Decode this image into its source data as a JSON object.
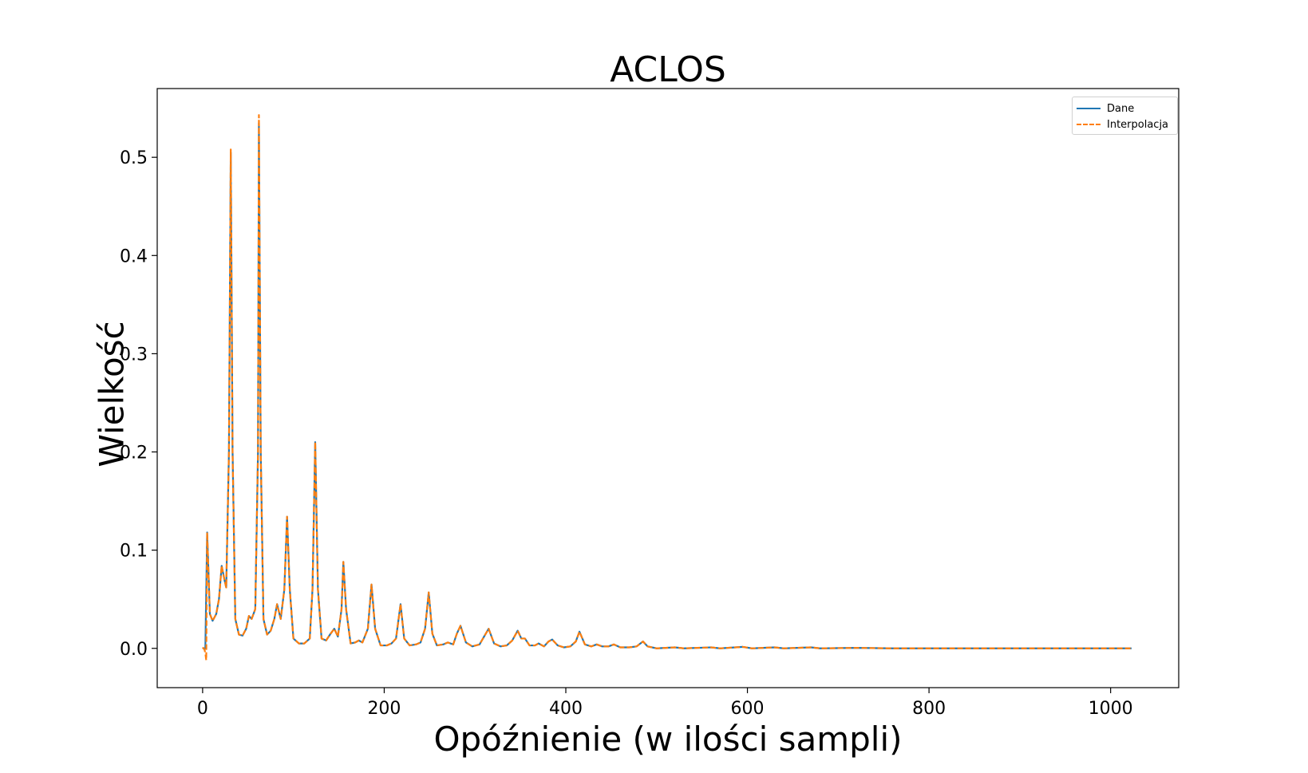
{
  "chart_data": {
    "type": "line",
    "title": "ACLOS",
    "xlabel": "Opóźnienie (w ilości sampli)",
    "ylabel": "Wielkość",
    "xlim": [
      -50,
      1075
    ],
    "ylim": [
      -0.04,
      0.57
    ],
    "xticks": [
      0,
      200,
      400,
      600,
      800,
      1000
    ],
    "yticks": [
      0.0,
      0.1,
      0.2,
      0.3,
      0.4,
      0.5
    ],
    "legend_position": "top-right",
    "grid": false,
    "series": [
      {
        "name": "Dane",
        "color": "#1f77b4",
        "style": "solid",
        "points": [
          [
            0,
            0.0
          ],
          [
            3,
            0.0
          ],
          [
            5,
            0.118
          ],
          [
            8,
            0.035
          ],
          [
            11,
            0.028
          ],
          [
            15,
            0.035
          ],
          [
            18,
            0.05
          ],
          [
            21,
            0.084
          ],
          [
            24,
            0.07
          ],
          [
            26,
            0.062
          ],
          [
            29,
            0.2
          ],
          [
            31,
            0.505
          ],
          [
            33,
            0.2
          ],
          [
            36,
            0.03
          ],
          [
            40,
            0.014
          ],
          [
            44,
            0.013
          ],
          [
            48,
            0.02
          ],
          [
            51,
            0.033
          ],
          [
            54,
            0.03
          ],
          [
            58,
            0.04
          ],
          [
            61,
            0.2
          ],
          [
            62,
            0.535
          ],
          [
            64,
            0.2
          ],
          [
            67,
            0.03
          ],
          [
            71,
            0.014
          ],
          [
            75,
            0.018
          ],
          [
            79,
            0.03
          ],
          [
            82,
            0.045
          ],
          [
            86,
            0.03
          ],
          [
            90,
            0.06
          ],
          [
            93,
            0.134
          ],
          [
            96,
            0.06
          ],
          [
            100,
            0.01
          ],
          [
            106,
            0.005
          ],
          [
            112,
            0.005
          ],
          [
            118,
            0.01
          ],
          [
            121,
            0.06
          ],
          [
            124,
            0.21
          ],
          [
            127,
            0.06
          ],
          [
            131,
            0.01
          ],
          [
            136,
            0.008
          ],
          [
            141,
            0.015
          ],
          [
            145,
            0.02
          ],
          [
            149,
            0.012
          ],
          [
            153,
            0.04
          ],
          [
            155,
            0.088
          ],
          [
            158,
            0.04
          ],
          [
            163,
            0.005
          ],
          [
            168,
            0.006
          ],
          [
            172,
            0.008
          ],
          [
            176,
            0.006
          ],
          [
            182,
            0.02
          ],
          [
            186,
            0.065
          ],
          [
            190,
            0.02
          ],
          [
            196,
            0.003
          ],
          [
            203,
            0.003
          ],
          [
            208,
            0.005
          ],
          [
            213,
            0.01
          ],
          [
            218,
            0.045
          ],
          [
            222,
            0.01
          ],
          [
            228,
            0.003
          ],
          [
            235,
            0.004
          ],
          [
            240,
            0.006
          ],
          [
            245,
            0.02
          ],
          [
            249,
            0.057
          ],
          [
            253,
            0.015
          ],
          [
            258,
            0.003
          ],
          [
            265,
            0.004
          ],
          [
            270,
            0.006
          ],
          [
            276,
            0.004
          ],
          [
            280,
            0.015
          ],
          [
            284,
            0.023
          ],
          [
            290,
            0.006
          ],
          [
            297,
            0.002
          ],
          [
            305,
            0.004
          ],
          [
            310,
            0.012
          ],
          [
            315,
            0.02
          ],
          [
            321,
            0.005
          ],
          [
            328,
            0.002
          ],
          [
            335,
            0.003
          ],
          [
            341,
            0.008
          ],
          [
            347,
            0.018
          ],
          [
            351,
            0.01
          ],
          [
            355,
            0.01
          ],
          [
            360,
            0.003
          ],
          [
            366,
            0.003
          ],
          [
            370,
            0.005
          ],
          [
            376,
            0.002
          ],
          [
            381,
            0.007
          ],
          [
            385,
            0.009
          ],
          [
            391,
            0.003
          ],
          [
            398,
            0.001
          ],
          [
            405,
            0.002
          ],
          [
            411,
            0.007
          ],
          [
            415,
            0.017
          ],
          [
            421,
            0.004
          ],
          [
            428,
            0.002
          ],
          [
            434,
            0.004
          ],
          [
            440,
            0.002
          ],
          [
            447,
            0.002
          ],
          [
            453,
            0.004
          ],
          [
            460,
            0.001
          ],
          [
            470,
            0.001
          ],
          [
            478,
            0.002
          ],
          [
            485,
            0.007
          ],
          [
            490,
            0.002
          ],
          [
            500,
            0.0
          ],
          [
            520,
            0.001
          ],
          [
            530,
            0.0
          ],
          [
            560,
            0.001
          ],
          [
            570,
            0.0
          ],
          [
            595,
            0.0015
          ],
          [
            605,
            0.0
          ],
          [
            630,
            0.001
          ],
          [
            640,
            0.0
          ],
          [
            670,
            0.001
          ],
          [
            680,
            0.0
          ],
          [
            720,
            0.0005
          ],
          [
            760,
            0.0
          ],
          [
            800,
            0.0
          ],
          [
            850,
            0.0
          ],
          [
            900,
            0.0
          ],
          [
            950,
            0.0
          ],
          [
            1000,
            0.0
          ],
          [
            1023,
            0.0
          ]
        ]
      },
      {
        "name": "Interpolacja",
        "color": "#ff7f0e",
        "style": "dashed",
        "points": [
          [
            0,
            0.001
          ],
          [
            2,
            -0.001
          ],
          [
            3,
            -0.005
          ],
          [
            4,
            -0.012
          ],
          [
            5,
            0.118
          ],
          [
            8,
            0.035
          ],
          [
            11,
            0.028
          ],
          [
            15,
            0.035
          ],
          [
            18,
            0.05
          ],
          [
            21,
            0.084
          ],
          [
            24,
            0.07
          ],
          [
            26,
            0.062
          ],
          [
            29,
            0.2
          ],
          [
            31,
            0.508
          ],
          [
            33,
            0.2
          ],
          [
            36,
            0.03
          ],
          [
            40,
            0.014
          ],
          [
            44,
            0.013
          ],
          [
            48,
            0.02
          ],
          [
            51,
            0.033
          ],
          [
            54,
            0.03
          ],
          [
            58,
            0.04
          ],
          [
            61,
            0.2
          ],
          [
            62,
            0.543
          ],
          [
            64,
            0.2
          ],
          [
            67,
            0.03
          ],
          [
            71,
            0.014
          ],
          [
            75,
            0.018
          ],
          [
            79,
            0.03
          ],
          [
            82,
            0.045
          ],
          [
            86,
            0.03
          ],
          [
            90,
            0.06
          ],
          [
            93,
            0.134
          ],
          [
            96,
            0.06
          ],
          [
            100,
            0.01
          ],
          [
            106,
            0.005
          ],
          [
            112,
            0.005
          ],
          [
            118,
            0.01
          ],
          [
            121,
            0.06
          ],
          [
            124,
            0.21
          ],
          [
            127,
            0.06
          ],
          [
            131,
            0.01
          ],
          [
            136,
            0.008
          ],
          [
            141,
            0.015
          ],
          [
            145,
            0.02
          ],
          [
            149,
            0.012
          ],
          [
            153,
            0.04
          ],
          [
            155,
            0.088
          ],
          [
            158,
            0.04
          ],
          [
            163,
            0.005
          ],
          [
            168,
            0.006
          ],
          [
            172,
            0.008
          ],
          [
            176,
            0.006
          ],
          [
            182,
            0.02
          ],
          [
            186,
            0.065
          ],
          [
            190,
            0.02
          ],
          [
            196,
            0.003
          ],
          [
            203,
            0.003
          ],
          [
            208,
            0.005
          ],
          [
            213,
            0.01
          ],
          [
            218,
            0.045
          ],
          [
            222,
            0.01
          ],
          [
            228,
            0.003
          ],
          [
            235,
            0.004
          ],
          [
            240,
            0.006
          ],
          [
            245,
            0.02
          ],
          [
            249,
            0.057
          ],
          [
            253,
            0.015
          ],
          [
            258,
            0.003
          ],
          [
            265,
            0.004
          ],
          [
            270,
            0.006
          ],
          [
            276,
            0.004
          ],
          [
            280,
            0.015
          ],
          [
            284,
            0.023
          ],
          [
            290,
            0.006
          ],
          [
            297,
            0.002
          ],
          [
            305,
            0.004
          ],
          [
            310,
            0.012
          ],
          [
            315,
            0.02
          ],
          [
            321,
            0.005
          ],
          [
            328,
            0.002
          ],
          [
            335,
            0.003
          ],
          [
            341,
            0.008
          ],
          [
            347,
            0.018
          ],
          [
            351,
            0.01
          ],
          [
            355,
            0.01
          ],
          [
            360,
            0.003
          ],
          [
            366,
            0.003
          ],
          [
            370,
            0.005
          ],
          [
            376,
            0.002
          ],
          [
            381,
            0.007
          ],
          [
            385,
            0.009
          ],
          [
            391,
            0.003
          ],
          [
            398,
            0.001
          ],
          [
            405,
            0.002
          ],
          [
            411,
            0.007
          ],
          [
            415,
            0.017
          ],
          [
            421,
            0.004
          ],
          [
            428,
            0.002
          ],
          [
            434,
            0.004
          ],
          [
            440,
            0.002
          ],
          [
            447,
            0.002
          ],
          [
            453,
            0.004
          ],
          [
            460,
            0.001
          ],
          [
            470,
            0.001
          ],
          [
            478,
            0.002
          ],
          [
            485,
            0.007
          ],
          [
            490,
            0.002
          ],
          [
            500,
            0.0
          ],
          [
            520,
            0.001
          ],
          [
            530,
            0.0
          ],
          [
            560,
            0.001
          ],
          [
            570,
            0.0
          ],
          [
            595,
            0.0015
          ],
          [
            605,
            0.0
          ],
          [
            630,
            0.001
          ],
          [
            640,
            0.0
          ],
          [
            670,
            0.001
          ],
          [
            680,
            0.0
          ],
          [
            720,
            0.0005
          ],
          [
            760,
            0.0
          ],
          [
            800,
            0.0
          ],
          [
            850,
            0.0
          ],
          [
            900,
            0.0
          ],
          [
            950,
            0.0
          ],
          [
            1000,
            0.0
          ],
          [
            1023,
            0.0
          ]
        ]
      }
    ]
  }
}
